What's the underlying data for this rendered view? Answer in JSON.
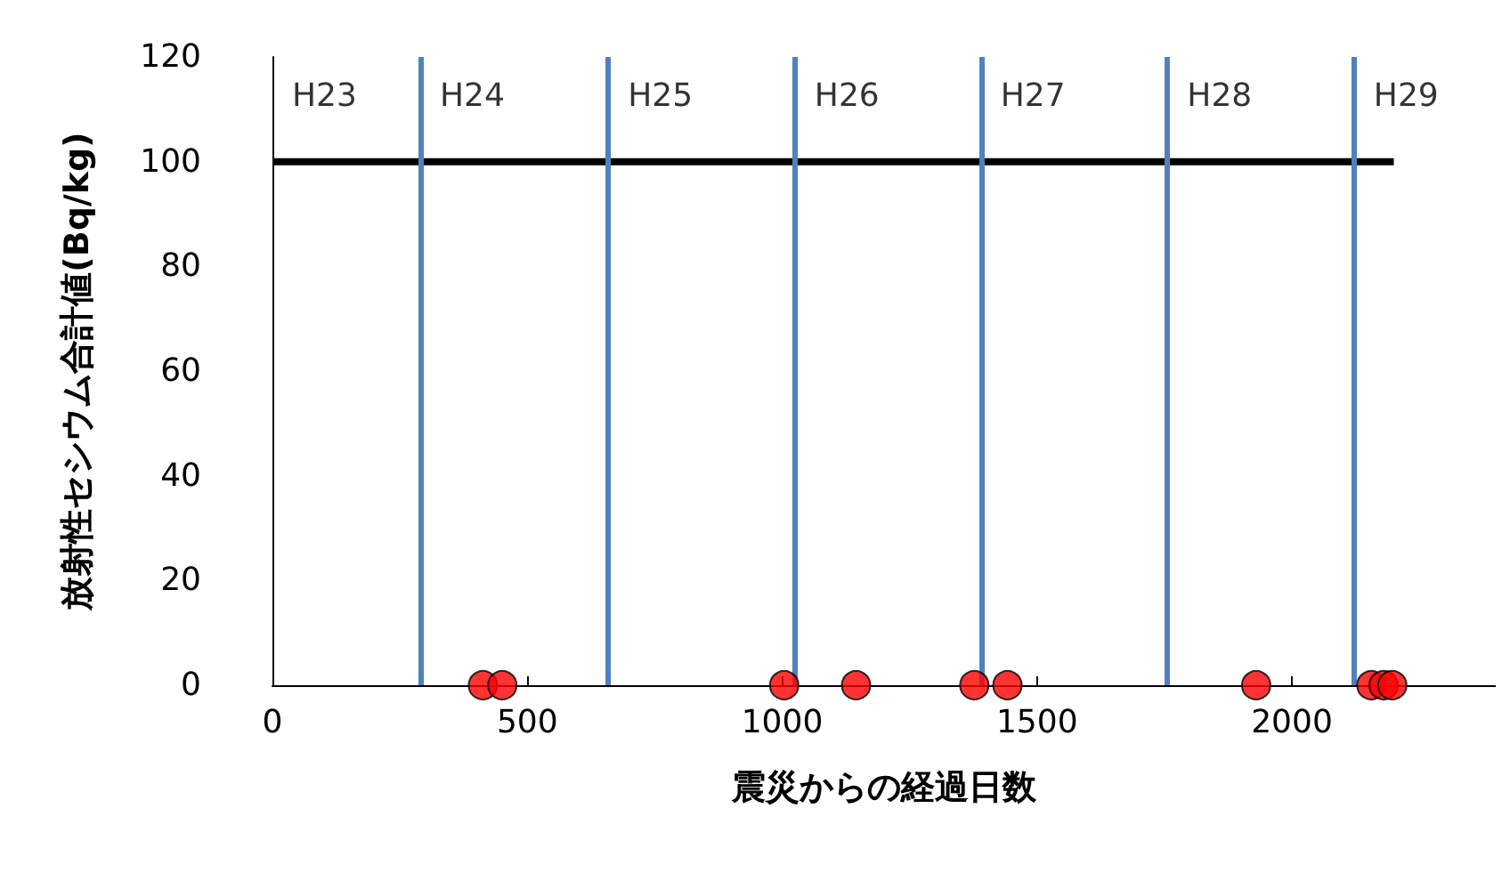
{
  "chart_data": {
    "type": "scatter",
    "xlabel": "震災からの経過日数",
    "ylabel": "放射性セシウム合計値(Bq/kg)",
    "xlim": [
      0,
      2400
    ],
    "xticks": [
      0,
      500,
      1000,
      1500,
      2000
    ],
    "ylim": [
      0,
      120
    ],
    "yticks": [
      0,
      20,
      40,
      60,
      80,
      100,
      120
    ],
    "grid": false,
    "series": [
      {
        "marker": "circle",
        "color": "#ff0000",
        "x": [
          413,
          451,
          1004,
          1145,
          1377,
          1442,
          1930,
          2156,
          2180,
          2197
        ],
        "values": [
          0,
          0,
          0,
          0,
          0,
          0,
          0,
          0,
          0,
          0
        ]
      },
      {
        "type": "line",
        "color": "#000000",
        "x": [
          0,
          2200
        ],
        "values": [
          100,
          100
        ]
      }
    ],
    "ref_lines": [
      {
        "axis": "x",
        "value": 290,
        "color": "#4f81bd"
      },
      {
        "axis": "x",
        "value": 659,
        "color": "#4f81bd"
      },
      {
        "axis": "x",
        "value": 1025,
        "color": "#4f81bd"
      },
      {
        "axis": "x",
        "value": 1390,
        "color": "#4f81bd"
      },
      {
        "axis": "x",
        "value": 1756,
        "color": "#4f81bd"
      },
      {
        "axis": "x",
        "value": 2122,
        "color": "#4f81bd"
      }
    ],
    "annotations": [
      "H23",
      "H24",
      "H25",
      "H26",
      "H27",
      "H28",
      "H29"
    ]
  }
}
